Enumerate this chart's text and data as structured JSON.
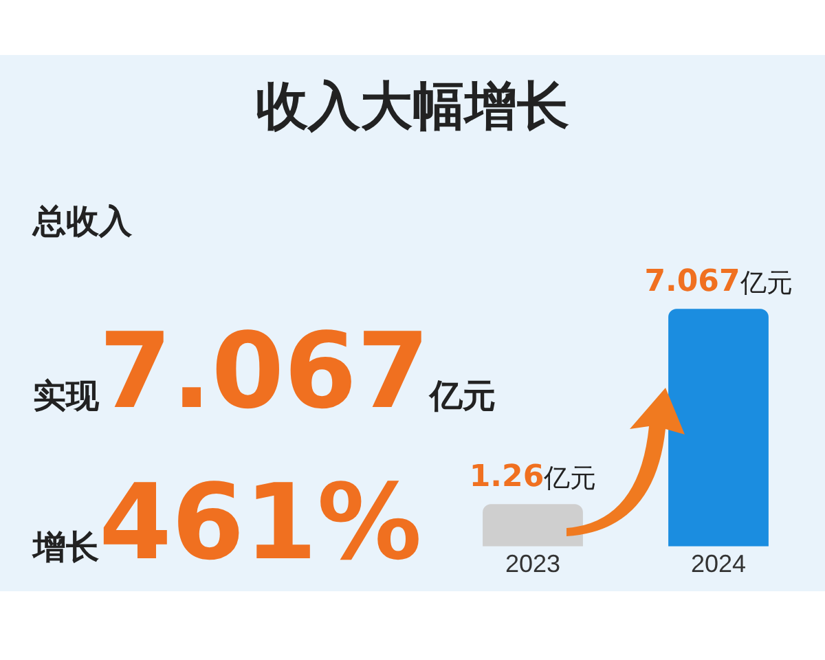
{
  "chart_data": {
    "type": "bar",
    "title": "收入大幅增长",
    "categories": [
      "2023",
      "2024"
    ],
    "values": [
      1.26,
      7.067
    ],
    "colors": [
      "#cfcfcf",
      "#1b8de0"
    ],
    "value_labels": [
      "1.26亿元",
      "7.067亿元"
    ],
    "annotations": [
      "总收入",
      "实现7.067亿元",
      "增长461%"
    ],
    "grid": false,
    "legend": false
  }
}
